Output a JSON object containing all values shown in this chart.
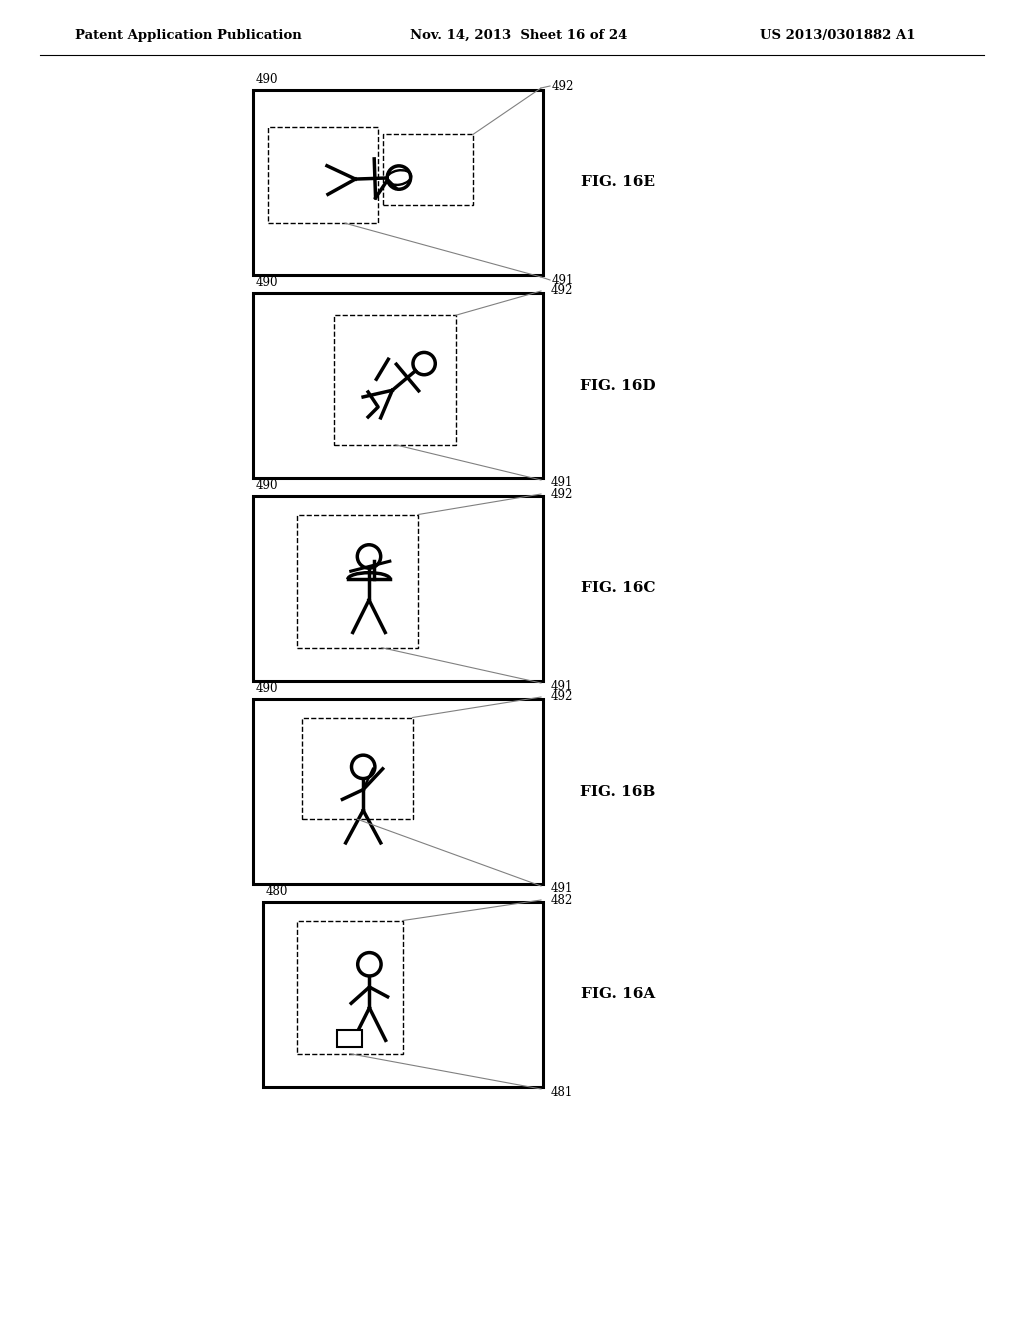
{
  "bg_color": "#ffffff",
  "header_left": "Patent Application Publication",
  "header_mid": "Nov. 14, 2013  Sheet 16 of 24",
  "header_right": "US 2013/0301882 A1"
}
